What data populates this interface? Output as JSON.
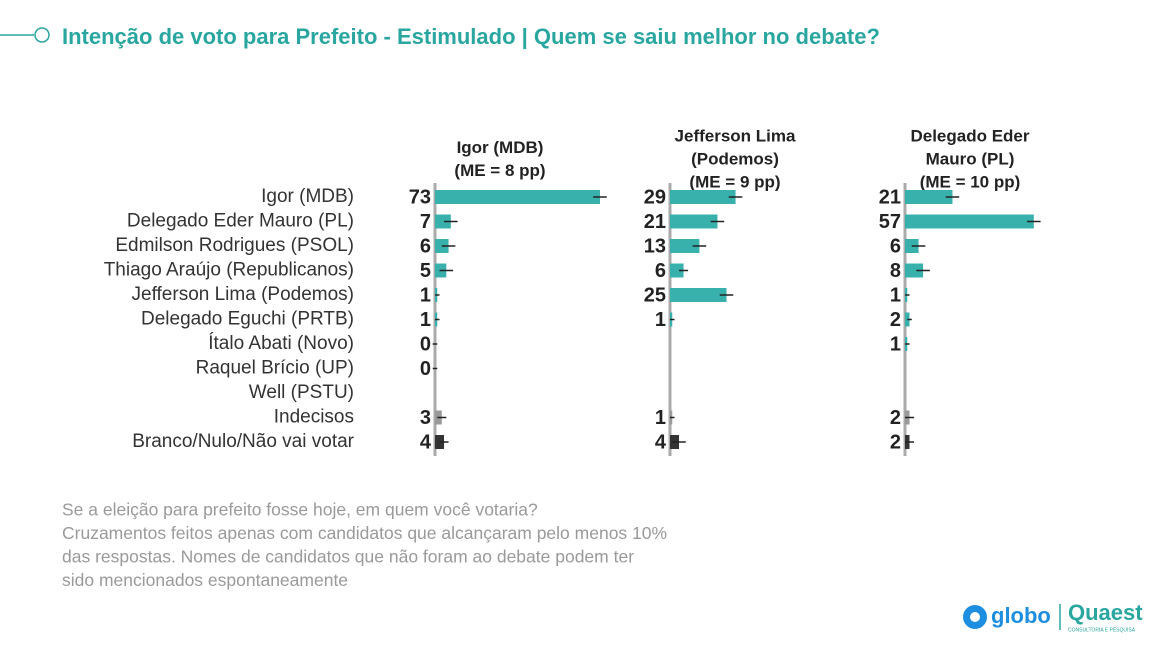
{
  "chart_data": {
    "type": "bar",
    "orientation": "horizontal",
    "title": "Intenção de voto para Prefeito - Estimulado | Quem se saiu melhor no debate?",
    "categories": [
      "Igor (MDB)",
      "Delegado Eder Mauro (PL)",
      "Edmilson Rodrigues (PSOL)",
      "Thiago Araújo (Republicanos)",
      "Jefferson Lima (Podemos)",
      "Delegado Eguchi (PRTB)",
      "Ítalo Abati (Novo)",
      "Raquel Brício (UP)",
      "Well (PSTU)",
      "Indecisos",
      "Branco/Nulo/Não vai votar"
    ],
    "colors": [
      "#38b0ab",
      "#38b0ab",
      "#38b0ab",
      "#38b0ab",
      "#38b0ab",
      "#38b0ab",
      "#38b0ab",
      "#38b0ab",
      "#38b0ab",
      "#9a9a9a",
      "#333333"
    ],
    "xlim": [
      0,
      100
    ],
    "panels": [
      {
        "title": [
          "Igor (MDB)",
          "(ME = 8 pp)"
        ],
        "values": [
          73,
          7,
          6,
          5,
          1,
          1,
          0,
          0,
          null,
          3,
          4
        ],
        "errors": [
          3,
          3,
          3,
          3,
          1,
          1,
          1,
          1,
          null,
          2,
          2
        ]
      },
      {
        "title": [
          "Jefferson Lima",
          "(Podemos)",
          "(ME = 9 pp)"
        ],
        "values": [
          29,
          21,
          13,
          6,
          25,
          1,
          null,
          null,
          null,
          1,
          4
        ],
        "errors": [
          3,
          3,
          3,
          2,
          3,
          1,
          null,
          null,
          null,
          1,
          3
        ]
      },
      {
        "title": [
          "Delegado Eder",
          "Mauro (PL)",
          "(ME = 10 pp)"
        ],
        "values": [
          21,
          57,
          6,
          8,
          1,
          2,
          1,
          null,
          null,
          2,
          2
        ],
        "errors": [
          3,
          3,
          3,
          3,
          1,
          1,
          1,
          null,
          null,
          2,
          2
        ]
      }
    ],
    "footnote": [
      "Se a eleição para prefeito fosse hoje, em quem você votaria?",
      "Cruzamentos feitos apenas com candidatos que alcançaram pelo menos 10%",
      "das respostas. Nomes de candidatos que não foram ao debate podem ter",
      "sido mencionados espontaneamente"
    ]
  },
  "logos": {
    "globo": "globo",
    "quaest": "Quaest",
    "quaest_sub": "CONSULTORIA E PESQUISA"
  }
}
